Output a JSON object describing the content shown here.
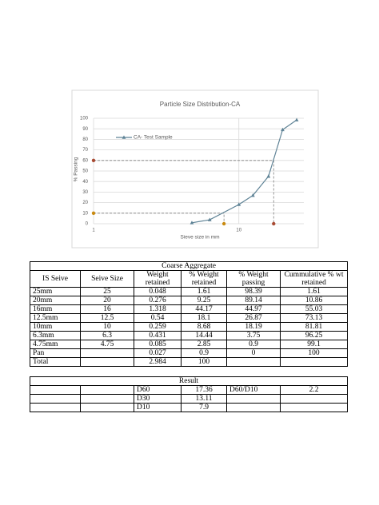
{
  "chart_data": {
    "type": "line",
    "title": "Particle Size Distribution-CA",
    "x_label": "Sieve size in mm",
    "y_label": "% Passing",
    "x": [
      4.75,
      6.3,
      10,
      12.5,
      16,
      20,
      25
    ],
    "series": [
      {
        "name": "CA- Test Sample",
        "color": "#5f8396",
        "values": [
          0.9,
          3.75,
          18.19,
          26.87,
          44.97,
          89.14,
          98.39
        ]
      }
    ],
    "xlim": [
      1,
      28
    ],
    "xticks": [
      1,
      10
    ],
    "x_log": true,
    "ylim": [
      0,
      100
    ],
    "yticks": [
      0,
      10,
      20,
      30,
      40,
      50,
      60,
      70,
      80,
      90,
      100
    ],
    "grid": true,
    "legend": "upper left",
    "reference_lines": [
      {
        "x": 7.9,
        "y": 10,
        "color": "#c98a10"
      },
      {
        "x": 17.36,
        "y": 60,
        "color": "#a84a32"
      }
    ]
  },
  "table": {
    "title": "Coarse Aggregate",
    "header": [
      "IS Seive",
      "Seive Size",
      "Weight\nretained",
      "% Weight\nretained",
      "% Weight\npassing",
      "Cummulative % wt\nretained"
    ],
    "rows": [
      [
        "25mm",
        "25",
        "0.048",
        "1.61",
        "98.39",
        "1.61"
      ],
      [
        "20mm",
        "20",
        "0.276",
        "9.25",
        "89.14",
        "10.86"
      ],
      [
        "16mm",
        "16",
        "1.318",
        "44.17",
        "44.97",
        "55.03"
      ],
      [
        "12.5mm",
        "12.5",
        "0.54",
        "18.1",
        "26.87",
        "73.13"
      ],
      [
        "10mm",
        "10",
        "0.259",
        "8.68",
        "18.19",
        "81.81"
      ],
      [
        "6.3mm",
        "6.3",
        "0.431",
        "14.44",
        "3.75",
        "96.25"
      ],
      [
        "4.75mm",
        "4.75",
        "0.085",
        "2.85",
        "0.9",
        "99.1"
      ],
      [
        "Pan",
        null,
        "0.027",
        "0.9",
        "0",
        "100"
      ],
      [
        "Total",
        null,
        "2.984",
        "100",
        null,
        null
      ]
    ]
  },
  "result": {
    "title": "Result",
    "rows": [
      [
        null,
        null,
        "D60",
        "17.36",
        "D60/D10",
        "2.2"
      ],
      [
        null,
        null,
        "D30",
        "13.11",
        null,
        null
      ],
      [
        null,
        null,
        "D10",
        "7.9",
        null,
        null
      ]
    ]
  }
}
